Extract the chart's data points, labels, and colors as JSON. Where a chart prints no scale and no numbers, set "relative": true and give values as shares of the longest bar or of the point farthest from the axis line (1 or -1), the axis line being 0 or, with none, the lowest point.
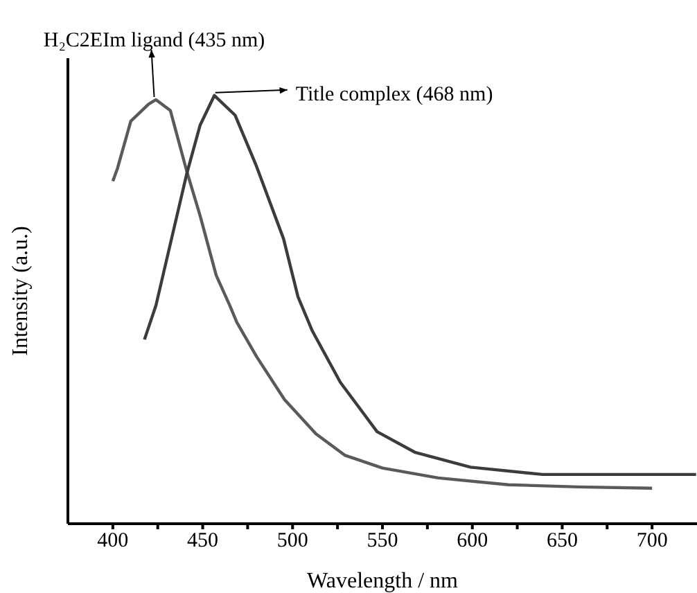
{
  "chart_data": {
    "type": "line",
    "relative": true,
    "xlabel": "Wavelength / nm",
    "ylabel": "Intensity (a.u.)",
    "xlim": [
      375,
      725
    ],
    "xticks": [
      400,
      {
        "value": 425,
        "label": null
      },
      450,
      {
        "value": 475,
        "label": null
      },
      500,
      {
        "value": 525,
        "label": null
      },
      550,
      {
        "value": 575,
        "label": null
      },
      600,
      {
        "value": 625,
        "label": null
      },
      650,
      {
        "value": 675,
        "label": null
      },
      700
    ],
    "grid": false,
    "legend": false,
    "marker": "none",
    "line_style": "solid",
    "series": [
      {
        "color": "#5a5a5a",
        "x": [
          400,
          402.6,
          410,
          420,
          424,
          432,
          441,
          448.5,
          457.5,
          465,
          469,
          480,
          495.5,
          513,
          529,
          550,
          581,
          620,
          659,
          700
        ],
        "values": [
          0.8,
          0.83,
          0.94,
          0.98,
          0.99,
          0.965,
          0.825,
          0.72,
          0.58,
          0.51,
          0.47,
          0.39,
          0.29,
          0.21,
          0.16,
          0.13,
          0.107,
          0.091,
          0.086,
          0.083
        ]
      },
      {
        "color": "#3c3c3c",
        "x": [
          417.6,
          424,
          441,
          448.5,
          456.5,
          468,
          479.8,
          495,
          503,
          511,
          526.6,
          547,
          568,
          599,
          639,
          724.5
        ],
        "values": [
          0.43,
          0.51,
          0.815,
          0.93,
          1,
          0.954,
          0.836,
          0.665,
          0.53,
          0.45,
          0.33,
          0.215,
          0.167,
          0.132,
          0.115,
          0.115
        ]
      }
    ],
    "annotations": [
      {
        "text": "H₂C2EIm ligand (435 nm)",
        "x": 423,
        "y": 0.99
      },
      {
        "text": "Title complex (468 nm)",
        "x": 457,
        "y": 1
      }
    ]
  }
}
